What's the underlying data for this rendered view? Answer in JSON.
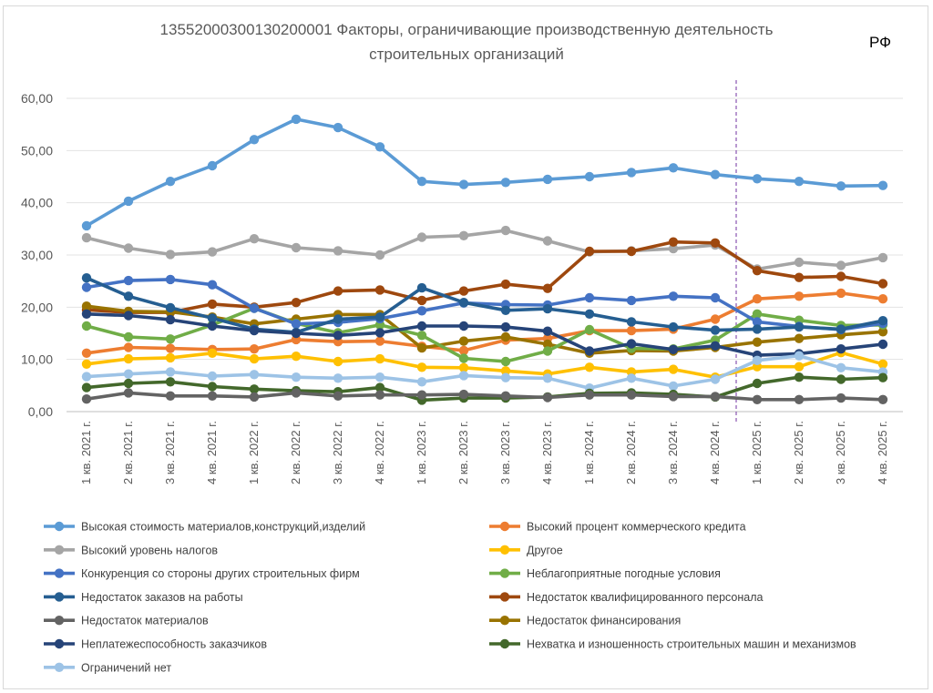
{
  "chart_data": {
    "type": "line",
    "title_line1": "13552000300130200001 Факторы, ограничивающие производственную деятельность",
    "title_line2": "строительных организаций",
    "region": "РФ",
    "ylim": [
      0,
      60
    ],
    "yticks": [
      0,
      10,
      20,
      30,
      40,
      50,
      60
    ],
    "ytick_labels": [
      "0,00",
      "10,00",
      "20,00",
      "30,00",
      "40,00",
      "50,00",
      "60,00"
    ],
    "forecast_divider_after_index": 15,
    "categories": [
      "1 кв. 2021 г.",
      "2 кв. 2021 г.",
      "3 кв. 2021 г.",
      "4 кв. 2021 г.",
      "1 кв. 2022 г.",
      "2 кв. 2022 г.",
      "3 кв. 2022 г.",
      "4 кв. 2022 г.",
      "1 кв. 2023 г.",
      "2 кв. 2023 г.",
      "3 кв. 2023 г.",
      "4 кв. 2023 г.",
      "1 кв. 2024 г.",
      "2 кв. 2024 г.",
      "3 кв. 2024 г.",
      "4 кв. 2024 г.",
      "1 кв. 2025 г.",
      "2 кв. 2025 г.",
      "3 кв. 2025 г.",
      "4 кв. 2025 г."
    ],
    "series": [
      {
        "name": "Высокий уровень налогов",
        "color": "#a5a5a5",
        "values": [
          33.3,
          31.3,
          30.1,
          30.6,
          33.1,
          31.4,
          30.8,
          30.0,
          33.4,
          33.7,
          34.7,
          32.7,
          30.6,
          30.8,
          31.2,
          31.9,
          27.3,
          28.6,
          28.0,
          29.5
        ]
      },
      {
        "name": "Высокий процент коммерческого кредита",
        "color": "#ed7d31",
        "values": [
          11.2,
          12.3,
          12.1,
          11.9,
          12.0,
          13.8,
          13.4,
          13.5,
          12.5,
          11.7,
          13.7,
          14.0,
          15.5,
          15.5,
          15.8,
          17.7,
          21.6,
          22.1,
          22.7,
          21.6
        ]
      },
      {
        "name": "Недостаток квалифицированного персонала",
        "color": "#9e480e",
        "values": [
          19.5,
          19.0,
          19.0,
          20.6,
          20.0,
          20.9,
          23.1,
          23.3,
          21.3,
          23.1,
          24.4,
          23.6,
          30.7,
          30.7,
          32.5,
          32.3,
          27.0,
          25.7,
          25.9,
          24.5
        ]
      },
      {
        "name": "Другое",
        "color": "#ffc000",
        "values": [
          9.1,
          10.1,
          10.3,
          11.2,
          10.1,
          10.6,
          9.6,
          10.1,
          8.5,
          8.4,
          7.8,
          7.2,
          8.5,
          7.6,
          8.1,
          6.6,
          8.6,
          8.6,
          11.3,
          9.1
        ]
      },
      {
        "name": "Недостаток финансирования",
        "color": "#997300",
        "values": [
          20.2,
          19.2,
          19.1,
          18.1,
          16.8,
          17.7,
          18.6,
          18.6,
          12.2,
          13.5,
          14.3,
          12.9,
          11.2,
          11.7,
          11.6,
          12.3,
          13.3,
          14.0,
          14.7,
          15.3
        ]
      },
      {
        "name": "Неблагоприятные погодные условия",
        "color": "#70ad47",
        "values": [
          16.4,
          14.3,
          13.9,
          16.6,
          19.8,
          16.9,
          15.1,
          16.6,
          14.6,
          10.2,
          9.6,
          11.6,
          15.7,
          12.1,
          12.0,
          13.7,
          18.7,
          17.5,
          16.5,
          16.6
        ]
      },
      {
        "name": "Высокая стоимость материалов,конструкций,изделий",
        "color": "#5b9bd5",
        "values": [
          35.6,
          40.3,
          44.1,
          47.1,
          52.1,
          56.0,
          54.4,
          50.7,
          44.1,
          43.5,
          43.9,
          44.5,
          45.0,
          45.8,
          46.7,
          45.4,
          44.6,
          44.1,
          43.2,
          43.3
        ]
      },
      {
        "name": "Конкуренция со стороны других строительных фирм",
        "color": "#4472c4",
        "values": [
          23.8,
          25.1,
          25.3,
          24.3,
          19.8,
          16.8,
          17.1,
          17.8,
          19.3,
          20.8,
          20.5,
          20.4,
          21.8,
          21.3,
          22.1,
          21.8,
          17.2,
          16.3,
          15.7,
          16.9
        ]
      },
      {
        "name": "Недостаток заказов на работы",
        "color": "#255e91",
        "values": [
          25.6,
          22.1,
          19.9,
          17.9,
          15.8,
          15.2,
          17.7,
          18.1,
          23.7,
          20.9,
          19.4,
          19.7,
          18.7,
          17.2,
          16.2,
          15.6,
          15.8,
          16.2,
          15.8,
          17.4
        ]
      },
      {
        "name": "Неплатежеспособность заказчиков",
        "color": "#264478",
        "values": [
          18.7,
          18.4,
          17.6,
          16.4,
          15.5,
          15.0,
          14.6,
          15.1,
          16.4,
          16.4,
          16.2,
          15.4,
          11.6,
          13.0,
          11.9,
          12.6,
          10.8,
          11.1,
          12.0,
          12.9
        ]
      },
      {
        "name": "Ограничений нет",
        "color": "#9dc3e6",
        "values": [
          6.7,
          7.2,
          7.6,
          6.8,
          7.1,
          6.6,
          6.4,
          6.6,
          5.7,
          6.9,
          6.5,
          6.4,
          4.5,
          6.4,
          4.9,
          6.2,
          9.8,
          10.7,
          8.4,
          7.6
        ]
      },
      {
        "name": "Нехватка и изношенность строительных машин и механизмов",
        "color": "#43682b",
        "values": [
          4.6,
          5.4,
          5.7,
          4.8,
          4.3,
          4.0,
          3.8,
          4.6,
          2.2,
          2.6,
          2.6,
          2.8,
          3.5,
          3.6,
          3.3,
          2.8,
          5.4,
          6.6,
          6.2,
          6.5
        ]
      },
      {
        "name": "Недостаток материалов",
        "color": "#636363",
        "values": [
          2.4,
          3.6,
          3.0,
          3.0,
          2.8,
          3.6,
          3.0,
          3.2,
          3.2,
          3.3,
          3.0,
          2.7,
          3.2,
          3.2,
          2.9,
          2.9,
          2.3,
          2.3,
          2.6,
          2.3
        ]
      }
    ],
    "legend": {
      "position": "bottom",
      "left": [
        {
          "label": "Высокая стоимость материалов,конструкций,изделий",
          "color": "#5b9bd5"
        },
        {
          "label": "Высокий уровень налогов",
          "color": "#a5a5a5"
        },
        {
          "label": "Конкуренция со стороны других строительных фирм",
          "color": "#4472c4"
        },
        {
          "label": "Недостаток заказов на работы",
          "color": "#255e91"
        },
        {
          "label": "Недостаток материалов",
          "color": "#636363"
        },
        {
          "label": "Неплатежеспособность заказчиков",
          "color": "#264478"
        },
        {
          "label": "Ограничений нет",
          "color": "#9dc3e6"
        }
      ],
      "right": [
        {
          "label": "Высокий процент коммерческого кредита",
          "color": "#ed7d31"
        },
        {
          "label": "Другое",
          "color": "#ffc000"
        },
        {
          "label": "Неблагоприятные погодные условия",
          "color": "#70ad47"
        },
        {
          "label": "Недостаток квалифицированного персонала",
          "color": "#9e480e"
        },
        {
          "label": "Недостаток финансирования",
          "color": "#997300"
        },
        {
          "label": "Нехватка и изношенность строительных машин и механизмов",
          "color": "#43682b"
        }
      ]
    }
  }
}
